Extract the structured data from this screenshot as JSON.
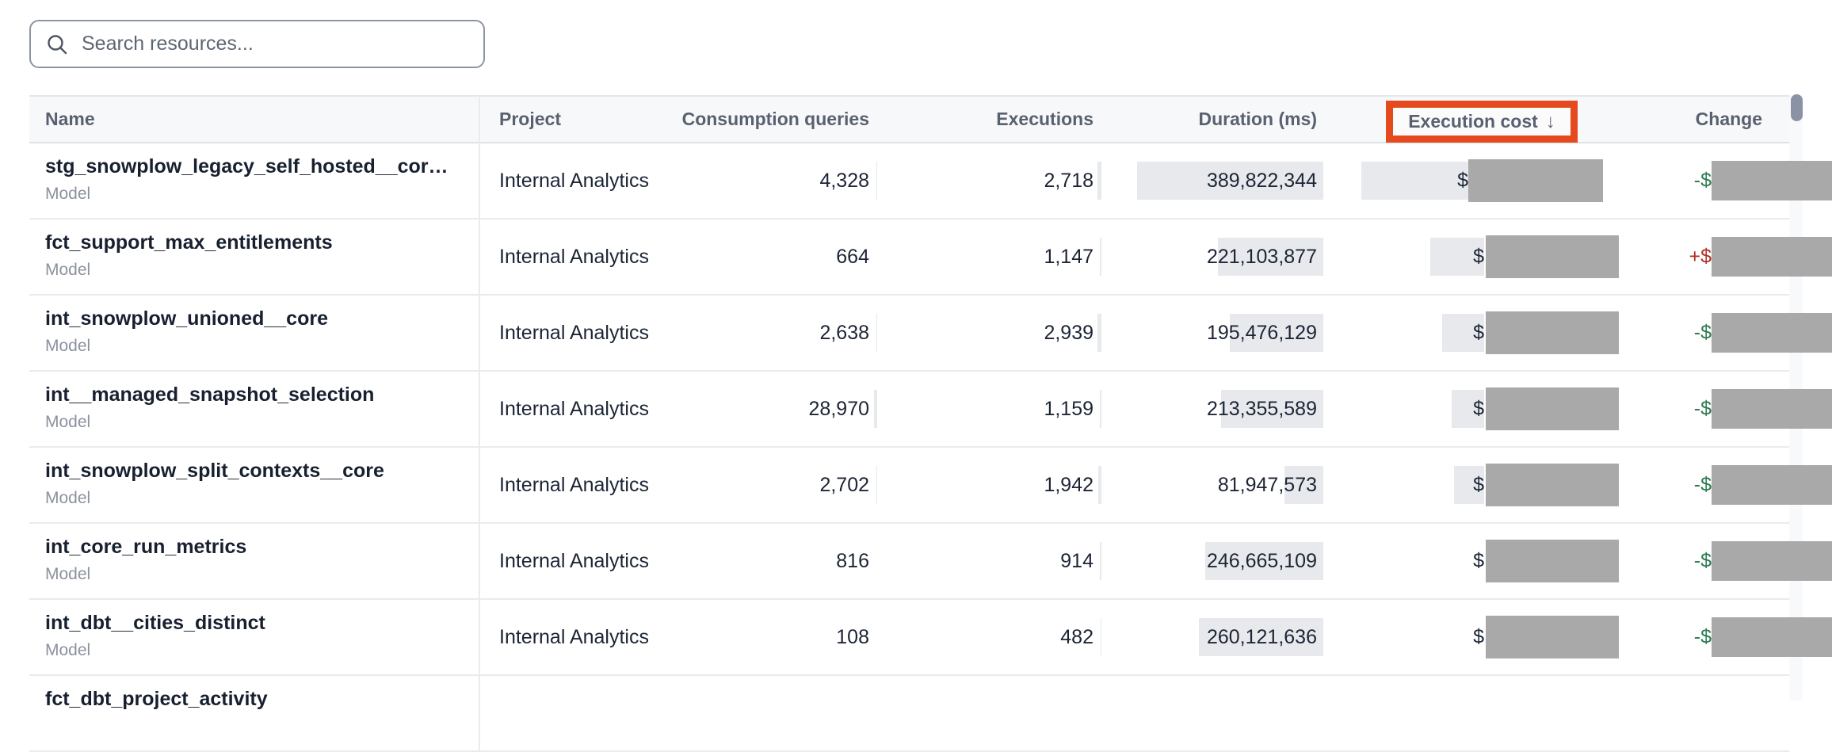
{
  "search": {
    "placeholder": "Search resources..."
  },
  "annotation": {
    "color": "#e5491e",
    "purpose": "highlight around Execution cost sorted column header"
  },
  "table": {
    "columns": [
      {
        "id": "name",
        "label": "Name"
      },
      {
        "id": "project",
        "label": "Project"
      },
      {
        "id": "consumption",
        "label": "Consumption queries"
      },
      {
        "id": "executions",
        "label": "Executions"
      },
      {
        "id": "duration",
        "label": "Duration (ms)"
      },
      {
        "id": "cost",
        "label": "Execution cost",
        "sorted": "desc"
      },
      {
        "id": "change",
        "label": "Change"
      }
    ],
    "sort_arrow": "↓",
    "rows": [
      {
        "name": "stg_snowplow_legacy_self_hosted__cor…",
        "type": "Model",
        "project": "Internal Analytics",
        "consumption": "4,328",
        "executions": "2,718",
        "duration": "389,822,344",
        "cost_currency": "$",
        "cost_redacted": true,
        "change_sign": "-$",
        "change_direction": "down",
        "change_redacted": true,
        "bars": {
          "consumption": 1,
          "executions": 5,
          "duration": 235,
          "cost": 135
        },
        "cost_redact_right": 20
      },
      {
        "name": "fct_support_max_entitlements",
        "type": "Model",
        "project": "Internal Analytics",
        "consumption": "664",
        "executions": "1,147",
        "duration": "221,103,877",
        "cost_currency": "$",
        "cost_redacted": true,
        "change_sign": "+$",
        "change_direction": "up",
        "change_redacted": true,
        "bars": {
          "consumption": 0,
          "executions": 2,
          "duration": 133,
          "cost": 68
        },
        "cost_redact_right": 0
      },
      {
        "name": "int_snowplow_unioned__core",
        "type": "Model",
        "project": "Internal Analytics",
        "consumption": "2,638",
        "executions": "2,939",
        "duration": "195,476,129",
        "cost_currency": "$",
        "cost_redacted": true,
        "change_sign": "-$",
        "change_direction": "down",
        "change_redacted": true,
        "bars": {
          "consumption": 1,
          "executions": 5,
          "duration": 118,
          "cost": 53
        },
        "cost_redact_right": 0
      },
      {
        "name": "int__managed_snapshot_selection",
        "type": "Model",
        "project": "Internal Analytics",
        "consumption": "28,970",
        "executions": "1,159",
        "duration": "213,355,589",
        "cost_currency": "$",
        "cost_redacted": true,
        "change_sign": "-$",
        "change_direction": "down",
        "change_redacted": true,
        "bars": {
          "consumption": 4,
          "executions": 2,
          "duration": 129,
          "cost": 41
        },
        "cost_redact_right": 0
      },
      {
        "name": "int_snowplow_split_contexts__core",
        "type": "Model",
        "project": "Internal Analytics",
        "consumption": "2,702",
        "executions": "1,942",
        "duration": "81,947,573",
        "cost_currency": "$",
        "cost_redacted": true,
        "change_sign": "-$",
        "change_direction": "down",
        "change_redacted": true,
        "bars": {
          "consumption": 1,
          "executions": 4,
          "duration": 49,
          "cost": 38
        },
        "cost_redact_right": 0
      },
      {
        "name": "int_core_run_metrics",
        "type": "Model",
        "project": "Internal Analytics",
        "consumption": "816",
        "executions": "914",
        "duration": "246,665,109",
        "cost_currency": "$",
        "cost_redacted": true,
        "change_sign": "-$",
        "change_direction": "down",
        "change_redacted": true,
        "bars": {
          "consumption": 0,
          "executions": 2,
          "duration": 149,
          "cost": 0
        },
        "cost_redact_right": 0
      },
      {
        "name": "int_dbt__cities_distinct",
        "type": "Model",
        "project": "Internal Analytics",
        "consumption": "108",
        "executions": "482",
        "duration": "260,121,636",
        "cost_currency": "$",
        "cost_redacted": true,
        "change_sign": "-$",
        "change_direction": "down",
        "change_redacted": true,
        "bars": {
          "consumption": 0,
          "executions": 1,
          "duration": 157,
          "cost": 0
        },
        "cost_redact_right": 0
      },
      {
        "name": "fct_dbt_project_activity",
        "type": "",
        "project": "",
        "consumption": "",
        "executions": "",
        "duration": "",
        "cost_currency": "",
        "cost_redacted": false,
        "change_sign": "",
        "change_direction": "",
        "change_redacted": false,
        "bars": {
          "consumption": 0,
          "executions": 0,
          "duration": 0,
          "cost": 0
        },
        "cost_redact_right": 0,
        "partial": true
      }
    ]
  }
}
